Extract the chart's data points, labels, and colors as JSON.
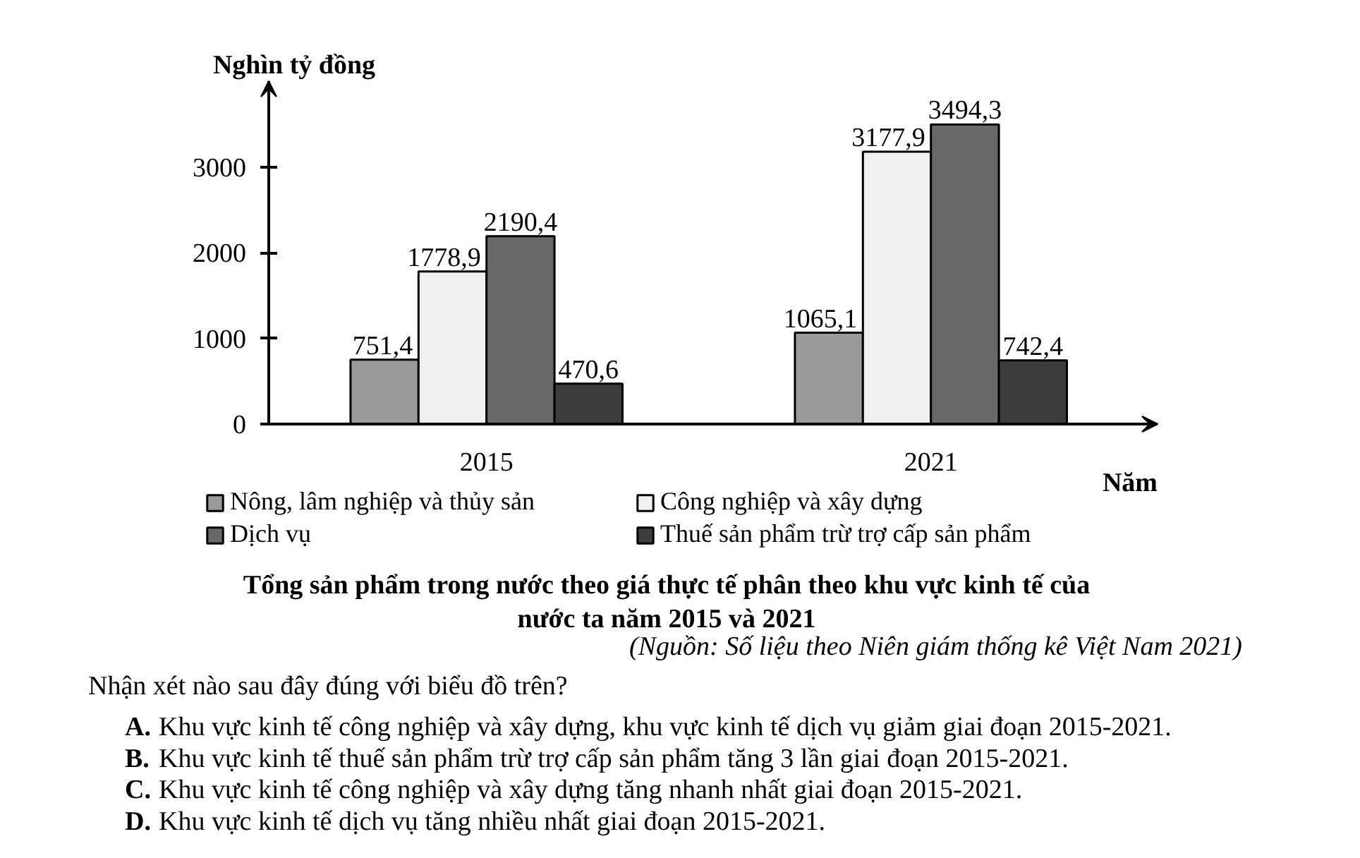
{
  "chart_data": {
    "type": "bar",
    "title": "Tổng sản phẩm trong nước theo giá thực tế phân theo khu vực kinh tế của nước ta năm 2015 và 2021",
    "xlabel": "Năm",
    "ylabel": "Nghìn tỷ đồng",
    "categories": [
      "2015",
      "2021"
    ],
    "series": [
      {
        "name": "Nông, lâm nghiệp và thủy sản",
        "color": "#9a9a9a",
        "values": [
          751.4,
          1065.1
        ],
        "value_labels": [
          "751,4",
          "1065,1"
        ]
      },
      {
        "name": "Công nghiệp và xây dựng",
        "color": "#f0f0f0",
        "values": [
          1778.9,
          3177.9
        ],
        "value_labels": [
          "1778,9",
          "3177,9"
        ]
      },
      {
        "name": "Dịch vụ",
        "color": "#686868",
        "values": [
          2190.4,
          3494.3
        ],
        "value_labels": [
          "2190,4",
          "3494,3"
        ]
      },
      {
        "name": "Thuế sản phẩm trừ trợ cấp sản phẩm",
        "color": "#3c3c3c",
        "values": [
          470.6,
          742.4
        ],
        "value_labels": [
          "470,6",
          "742,4"
        ]
      }
    ],
    "ylim": [
      0,
      4000
    ],
    "yticks": [
      0,
      1000,
      2000,
      3000
    ],
    "legend": "bottom",
    "annotations": [
      "(Nguồn: Số liệu theo Niên giám thống kê Việt Nam 2021)",
      "Nhận xét nào sau đây đúng với biểu đồ trên?",
      "A. Khu vực kinh tế công nghiệp và xây dựng, khu vực kinh tế dịch vụ giảm giai đoạn 2015-2021.",
      "B. Khu vực kinh tế thuế sản phẩm trừ trợ cấp sản phẩm tăng 3 lần giai đoạn 2015-2021.",
      "C. Khu vực kinh tế công nghiệp và xây dựng tăng nhanh nhất giai đoạn 2015-2021.",
      "D. Khu vực kinh tế dịch vụ tăng nhiều nhất giai đoạn 2015-2021."
    ]
  }
}
